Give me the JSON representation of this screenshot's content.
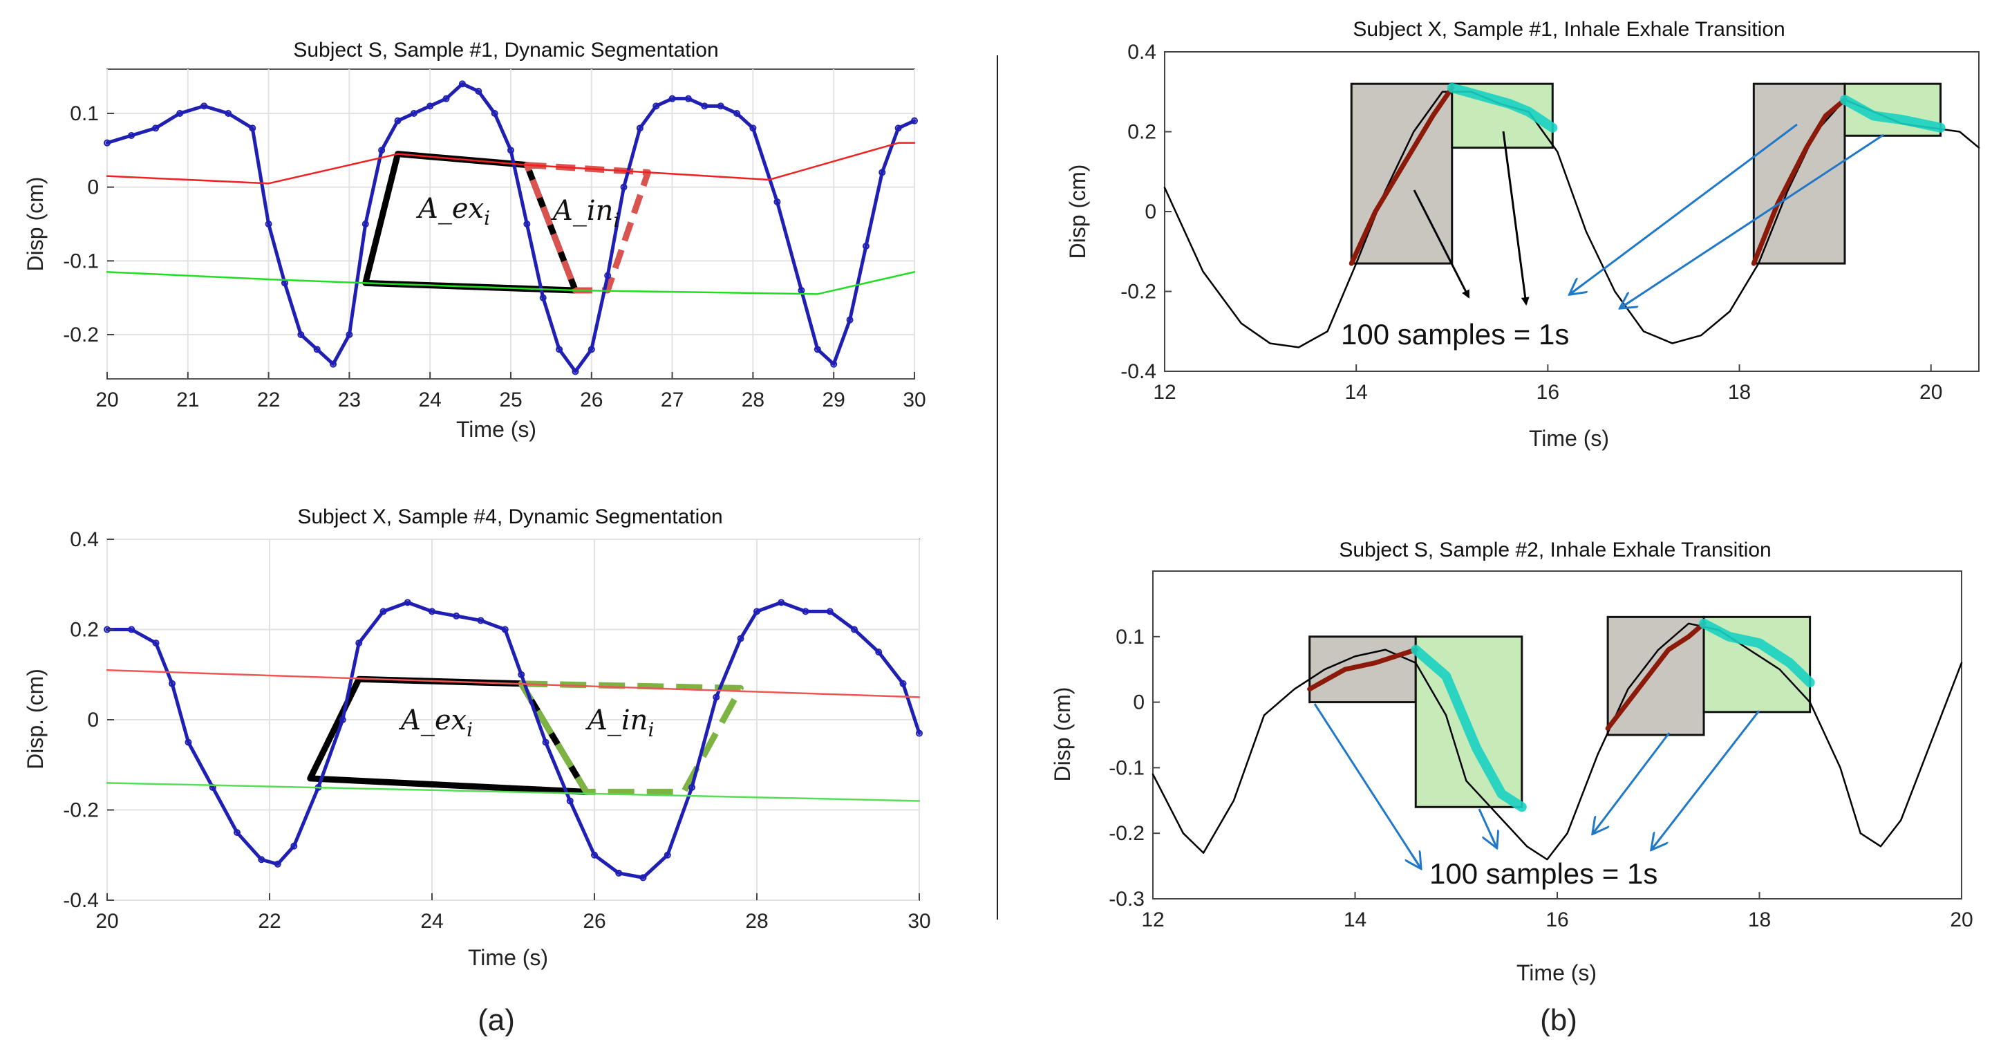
{
  "figure": {
    "panel_labels": [
      "(a)",
      "(b)"
    ],
    "area_labels": {
      "exhale": "A_ex",
      "inhale": "A_in",
      "subscript": "i"
    }
  },
  "chart_data": [
    {
      "id": "a1",
      "type": "line",
      "title": "Subject S, Sample #1, Dynamic Segmentation",
      "xlabel": "Time (s)",
      "ylabel": "Disp (cm)",
      "xlim": [
        20,
        30
      ],
      "ylim": [
        -0.26,
        0.16
      ],
      "xticks": [
        20,
        21,
        22,
        23,
        24,
        25,
        26,
        27,
        28,
        29,
        30
      ],
      "yticks": [
        -0.2,
        -0.1,
        0,
        0.1
      ],
      "ytick_labels": [
        "-0.2",
        "-0.1",
        "0",
        "0.1"
      ],
      "grid": true,
      "series": [
        {
          "role": "signal",
          "color": "#1f1fb4",
          "x": [
            20,
            20.3,
            20.6,
            20.9,
            21.2,
            21.5,
            21.8,
            22.0,
            22.2,
            22.4,
            22.6,
            22.8,
            23.0,
            23.2,
            23.4,
            23.6,
            23.8,
            24.0,
            24.2,
            24.4,
            24.6,
            24.8,
            25.0,
            25.2,
            25.4,
            25.6,
            25.8,
            26.0,
            26.2,
            26.4,
            26.6,
            26.8,
            27.0,
            27.2,
            27.4,
            27.6,
            27.8,
            28.0,
            28.3,
            28.6,
            28.8,
            29.0,
            29.2,
            29.4,
            29.6,
            29.8,
            30.0
          ],
          "y": [
            0.06,
            0.07,
            0.08,
            0.1,
            0.11,
            0.1,
            0.08,
            -0.05,
            -0.13,
            -0.2,
            -0.22,
            -0.24,
            -0.2,
            -0.05,
            0.05,
            0.09,
            0.1,
            0.11,
            0.12,
            0.14,
            0.13,
            0.1,
            0.05,
            -0.05,
            -0.15,
            -0.22,
            -0.25,
            -0.22,
            -0.12,
            0.0,
            0.08,
            0.11,
            0.12,
            0.12,
            0.11,
            0.11,
            0.1,
            0.08,
            -0.02,
            -0.14,
            -0.22,
            -0.24,
            -0.18,
            -0.08,
            0.02,
            0.08,
            0.09
          ]
        },
        {
          "role": "upper-envelope",
          "color": "#ee2222",
          "x": [
            20,
            22.0,
            23.6,
            25.2,
            28.2,
            29.8,
            30.0
          ],
          "y": [
            0.015,
            0.005,
            0.045,
            0.03,
            0.01,
            0.06,
            0.06
          ]
        },
        {
          "role": "lower-envelope",
          "color": "#22dd22",
          "x": [
            20,
            22.0,
            23.2,
            25.8,
            28.8,
            30.0
          ],
          "y": [
            -0.115,
            -0.125,
            -0.13,
            -0.14,
            -0.145,
            -0.115
          ]
        }
      ],
      "areas": [
        {
          "label": "exhale",
          "style": "black-solid",
          "x": [
            23.6,
            25.2,
            25.8,
            23.2
          ],
          "y": [
            0.045,
            0.03,
            -0.14,
            -0.13
          ]
        },
        {
          "label": "inhale",
          "style": "red-dashed",
          "x": [
            25.2,
            26.7,
            26.2,
            25.8
          ],
          "y": [
            0.03,
            0.02,
            -0.14,
            -0.14
          ]
        }
      ]
    },
    {
      "id": "a2",
      "type": "line",
      "title": "Subject X, Sample #4, Dynamic Segmentation",
      "xlabel": "Time (s)",
      "ylabel": "Disp. (cm)",
      "xlim": [
        20,
        30
      ],
      "ylim": [
        -0.4,
        0.4
      ],
      "xticks": [
        20,
        22,
        24,
        26,
        28,
        30
      ],
      "yticks": [
        -0.4,
        -0.2,
        0,
        0.2,
        0.4
      ],
      "ytick_labels": [
        "-0.4",
        "-0.2",
        "0",
        "0.2",
        "0.4"
      ],
      "grid": true,
      "series": [
        {
          "role": "signal",
          "color": "#1f1fb4",
          "x": [
            20,
            20.3,
            20.6,
            20.8,
            21.0,
            21.3,
            21.6,
            21.9,
            22.1,
            22.3,
            22.6,
            22.9,
            23.1,
            23.4,
            23.7,
            24.0,
            24.3,
            24.6,
            24.9,
            25.1,
            25.4,
            25.7,
            26.0,
            26.3,
            26.6,
            26.9,
            27.2,
            27.5,
            27.8,
            28.0,
            28.3,
            28.6,
            28.9,
            29.2,
            29.5,
            29.8,
            30.0
          ],
          "y": [
            0.2,
            0.2,
            0.17,
            0.08,
            -0.05,
            -0.15,
            -0.25,
            -0.31,
            -0.32,
            -0.28,
            -0.15,
            0.0,
            0.17,
            0.24,
            0.26,
            0.24,
            0.23,
            0.22,
            0.2,
            0.1,
            -0.05,
            -0.18,
            -0.3,
            -0.34,
            -0.35,
            -0.3,
            -0.15,
            0.05,
            0.18,
            0.24,
            0.26,
            0.24,
            0.24,
            0.2,
            0.15,
            0.08,
            -0.03
          ]
        },
        {
          "role": "upper-envelope",
          "color": "#ee5555",
          "x": [
            20,
            30
          ],
          "y": [
            0.11,
            0.05
          ]
        },
        {
          "role": "lower-envelope",
          "color": "#55dd55",
          "x": [
            20,
            30
          ],
          "y": [
            -0.14,
            -0.18
          ]
        }
      ],
      "areas": [
        {
          "label": "exhale",
          "style": "black-solid",
          "x": [
            23.1,
            25.1,
            25.9,
            22.5
          ],
          "y": [
            0.09,
            0.08,
            -0.16,
            -0.13
          ]
        },
        {
          "label": "inhale",
          "style": "green-dashed",
          "x": [
            25.1,
            27.8,
            27.1,
            25.9
          ],
          "y": [
            0.08,
            0.07,
            -0.16,
            -0.16
          ]
        }
      ]
    },
    {
      "id": "b1",
      "type": "line",
      "title": "Subject X, Sample #1, Inhale Exhale Transition",
      "xlabel": "Time (s)",
      "ylabel": "Disp (cm)",
      "xlim": [
        12,
        20.5
      ],
      "ylim": [
        -0.4,
        0.4
      ],
      "xticks": [
        12,
        14,
        16,
        18,
        20
      ],
      "yticks": [
        -0.4,
        -0.2,
        0,
        0.2,
        0.4
      ],
      "ytick_labels": [
        "-0.4",
        "-0.2",
        "0",
        "0.2",
        "0.4"
      ],
      "grid": false,
      "annotation": "100 samples = 1s",
      "series": [
        {
          "role": "signal",
          "color": "#000000",
          "x": [
            12,
            12.4,
            12.8,
            13.1,
            13.4,
            13.7,
            14.0,
            14.3,
            14.6,
            14.9,
            15.2,
            15.5,
            15.8,
            16.1,
            16.4,
            16.7,
            17.0,
            17.3,
            17.6,
            17.9,
            18.2,
            18.5,
            18.8,
            19.1,
            19.4,
            19.7,
            20.0,
            20.3,
            20.5
          ],
          "y": [
            0.06,
            -0.15,
            -0.28,
            -0.33,
            -0.34,
            -0.3,
            -0.13,
            0.05,
            0.2,
            0.3,
            0.3,
            0.27,
            0.25,
            0.15,
            -0.05,
            -0.2,
            -0.3,
            -0.33,
            -0.31,
            -0.25,
            -0.13,
            0.05,
            0.2,
            0.28,
            0.25,
            0.22,
            0.21,
            0.2,
            0.16
          ]
        },
        {
          "role": "exhale-window",
          "color": "#8b1a0a",
          "x": [
            13.95,
            14.2,
            14.5,
            14.8,
            15.0
          ],
          "y": [
            -0.13,
            0.0,
            0.12,
            0.24,
            0.31
          ]
        },
        {
          "role": "inhale-window",
          "color": "#19d1c2",
          "x": [
            15.0,
            15.3,
            15.6,
            15.8,
            16.05
          ],
          "y": [
            0.31,
            0.29,
            0.27,
            0.25,
            0.21
          ]
        },
        {
          "role": "exhale-window",
          "color": "#8b1a0a",
          "x": [
            18.15,
            18.4,
            18.7,
            18.9,
            19.1
          ],
          "y": [
            -0.13,
            0.02,
            0.16,
            0.24,
            0.28
          ]
        },
        {
          "role": "inhale-window",
          "color": "#19d1c2",
          "x": [
            19.1,
            19.4,
            19.7,
            19.9,
            20.1
          ],
          "y": [
            0.28,
            0.24,
            0.23,
            0.22,
            0.21
          ]
        }
      ],
      "boxes": [
        {
          "fill": "#c9c5bf",
          "x": [
            13.95,
            15.0
          ],
          "y": [
            -0.13,
            0.32
          ]
        },
        {
          "fill": "#c6ebb8",
          "x": [
            15.0,
            16.05
          ],
          "y": [
            0.16,
            0.32
          ]
        },
        {
          "fill": "#c9c5bf",
          "x": [
            18.15,
            19.1
          ],
          "y": [
            -0.13,
            0.32
          ]
        },
        {
          "fill": "#c6ebb8",
          "x": [
            19.1,
            20.1
          ],
          "y": [
            0.19,
            0.32
          ]
        }
      ]
    },
    {
      "id": "b2",
      "type": "line",
      "title": "Subject S, Sample #2, Inhale Exhale Transition",
      "xlabel": "Time (s)",
      "ylabel": "Disp (cm)",
      "xlim": [
        12,
        20
      ],
      "ylim": [
        -0.3,
        0.2
      ],
      "xticks": [
        12,
        14,
        16,
        18,
        20
      ],
      "yticks": [
        -0.3,
        -0.2,
        -0.1,
        0,
        0.1
      ],
      "ytick_labels": [
        "-0.3",
        "-0.2",
        "-0.1",
        "0",
        "0.1"
      ],
      "grid": false,
      "annotation": "100 samples = 1s",
      "series": [
        {
          "role": "signal",
          "color": "#000000",
          "x": [
            12,
            12.3,
            12.5,
            12.8,
            13.1,
            13.4,
            13.7,
            14.0,
            14.3,
            14.6,
            14.9,
            15.1,
            15.4,
            15.7,
            15.9,
            16.1,
            16.4,
            16.7,
            17.0,
            17.3,
            17.6,
            17.9,
            18.2,
            18.5,
            18.8,
            19.0,
            19.2,
            19.4,
            19.7,
            20.0
          ],
          "y": [
            -0.11,
            -0.2,
            -0.23,
            -0.15,
            -0.02,
            0.02,
            0.05,
            0.07,
            0.08,
            0.06,
            -0.02,
            -0.12,
            -0.17,
            -0.22,
            -0.24,
            -0.2,
            -0.08,
            0.02,
            0.08,
            0.12,
            0.11,
            0.08,
            0.05,
            0.0,
            -0.1,
            -0.2,
            -0.22,
            -0.18,
            -0.06,
            0.06
          ]
        },
        {
          "role": "exhale-window",
          "color": "#8b1a0a",
          "x": [
            13.55,
            13.9,
            14.2,
            14.4,
            14.6
          ],
          "y": [
            0.02,
            0.05,
            0.06,
            0.07,
            0.08
          ]
        },
        {
          "role": "inhale-window",
          "color": "#19d1c2",
          "x": [
            14.6,
            14.9,
            15.2,
            15.45,
            15.65
          ],
          "y": [
            0.08,
            0.04,
            -0.07,
            -0.14,
            -0.16
          ]
        },
        {
          "role": "exhale-window",
          "color": "#8b1a0a",
          "x": [
            16.5,
            16.8,
            17.1,
            17.3,
            17.45
          ],
          "y": [
            -0.04,
            0.02,
            0.08,
            0.1,
            0.12
          ]
        },
        {
          "role": "inhale-window",
          "color": "#19d1c2",
          "x": [
            17.45,
            17.7,
            18.0,
            18.3,
            18.5
          ],
          "y": [
            0.12,
            0.1,
            0.09,
            0.06,
            0.03
          ]
        }
      ],
      "boxes": [
        {
          "fill": "#c9c5bf",
          "x": [
            13.55,
            14.6
          ],
          "y": [
            0.0,
            0.1
          ]
        },
        {
          "fill": "#c6ebb8",
          "x": [
            14.6,
            15.65
          ],
          "y": [
            -0.16,
            0.1
          ]
        },
        {
          "fill": "#c9c5bf",
          "x": [
            16.5,
            17.45
          ],
          "y": [
            -0.05,
            0.13
          ]
        },
        {
          "fill": "#c6ebb8",
          "x": [
            17.45,
            18.5
          ],
          "y": [
            -0.015,
            0.13
          ]
        }
      ]
    }
  ]
}
